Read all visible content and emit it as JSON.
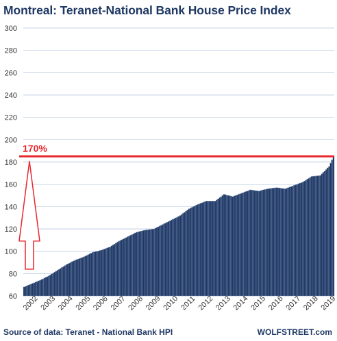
{
  "title": "Montreal: Teranet-National  Bank House Price Index",
  "source": "Source of data: Teranet - National Bank HPI",
  "brand": "WOLFSTREET.com",
  "colors": {
    "bar": "#1f3864",
    "annotation": "#e8262d",
    "grid": "#c5d3e6",
    "text": "#1f3864"
  },
  "chart_data": {
    "type": "bar",
    "title": "Montreal: Teranet-National  Bank House Price Index",
    "xlabel": "",
    "ylabel": "",
    "ylim": [
      60,
      300
    ],
    "yticks": [
      60,
      80,
      100,
      120,
      140,
      160,
      180,
      200,
      220,
      240,
      260,
      280,
      300
    ],
    "xticks": [
      "2002",
      "2003",
      "2004",
      "2005",
      "2006",
      "2007",
      "2008",
      "2009",
      "2010",
      "2011",
      "2012",
      "2013",
      "2014",
      "2015",
      "2016",
      "2017",
      "2018",
      "2019"
    ],
    "grid": true,
    "frequency": "monthly",
    "period": "Jan 2002 - Sep 2019",
    "anchors": [
      [
        "2002-01",
        68
      ],
      [
        "2002-12",
        74
      ],
      [
        "2003-06",
        78
      ],
      [
        "2003-12",
        83
      ],
      [
        "2004-06",
        88
      ],
      [
        "2004-12",
        92
      ],
      [
        "2005-06",
        95
      ],
      [
        "2005-12",
        99
      ],
      [
        "2006-06",
        101
      ],
      [
        "2006-12",
        104
      ],
      [
        "2007-06",
        109
      ],
      [
        "2007-12",
        113
      ],
      [
        "2008-06",
        117
      ],
      [
        "2008-12",
        119
      ],
      [
        "2009-06",
        120
      ],
      [
        "2009-12",
        124
      ],
      [
        "2010-06",
        128
      ],
      [
        "2010-12",
        132
      ],
      [
        "2011-06",
        138
      ],
      [
        "2011-12",
        142
      ],
      [
        "2012-06",
        145
      ],
      [
        "2012-12",
        145
      ],
      [
        "2013-06",
        151
      ],
      [
        "2013-12",
        149
      ],
      [
        "2014-06",
        152
      ],
      [
        "2014-12",
        155
      ],
      [
        "2015-06",
        154
      ],
      [
        "2015-12",
        156
      ],
      [
        "2016-06",
        157
      ],
      [
        "2016-12",
        156
      ],
      [
        "2017-06",
        159
      ],
      [
        "2017-12",
        162
      ],
      [
        "2018-06",
        167
      ],
      [
        "2018-12",
        168
      ],
      [
        "2019-03",
        172
      ],
      [
        "2019-06",
        176
      ],
      [
        "2019-09",
        185
      ]
    ],
    "reference_line": {
      "value": 185,
      "label": "170%"
    },
    "arrow": {
      "from": 68,
      "to": 185
    }
  }
}
